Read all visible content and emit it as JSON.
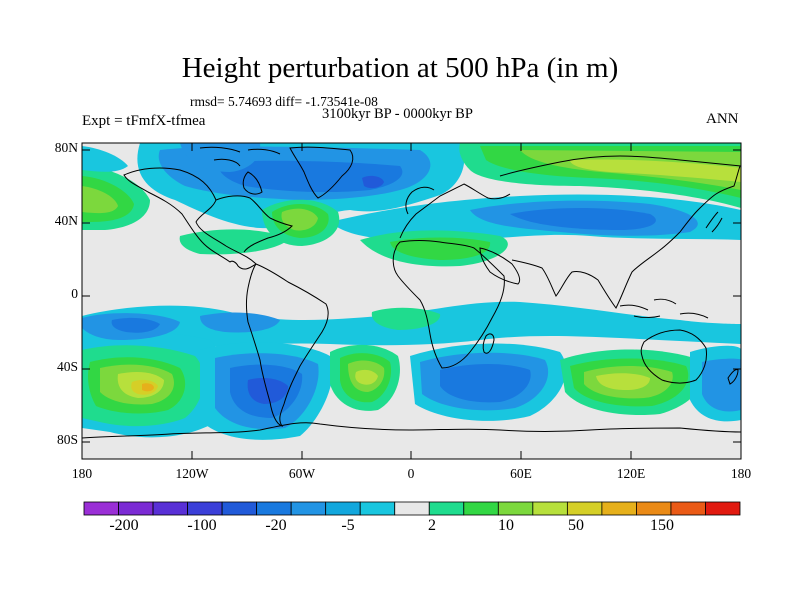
{
  "title": "Height perturbation at 500 hPa (in m)",
  "stats": "rmsd= 5.74693 diff= -1.73541e-08",
  "period": "3100kyr BP - 0000kyr BP",
  "experiment": "Expt = tFmfX-tfmea",
  "season": "ANN",
  "lat_labels": [
    "80N",
    "40N",
    "0",
    "40S",
    "80S"
  ],
  "lon_labels": [
    "180",
    "120W",
    "60W",
    "0",
    "60E",
    "120E",
    "180"
  ],
  "colorbar": {
    "colors": [
      "#9a2fd6",
      "#7b2bd4",
      "#5930d6",
      "#3b3fd8",
      "#215ad9",
      "#1979df",
      "#2294e4",
      "#12a7dd",
      "#19c6df",
      "#e8e8e8",
      "#1fdc8e",
      "#32d744",
      "#7cd83d",
      "#b7e03c",
      "#d5cf27",
      "#e6b01b",
      "#ea8a16",
      "#ea5a16",
      "#e11a10"
    ],
    "labels": [
      "-200",
      "-100",
      "-20",
      "-5",
      "2",
      "10",
      "50",
      "150"
    ]
  },
  "palette": {
    "neutral": "#e8e8e8",
    "cyan": "#19c6df",
    "skyblue": "#2294e4",
    "blue": "#1979df",
    "deepblue": "#215ad9",
    "teal": "#1fdc8e",
    "green": "#32d744",
    "lightgreen": "#7cd83d",
    "yellowgreen": "#b7e03c",
    "yellow": "#d5cf27",
    "orange": "#e6b01b"
  }
}
